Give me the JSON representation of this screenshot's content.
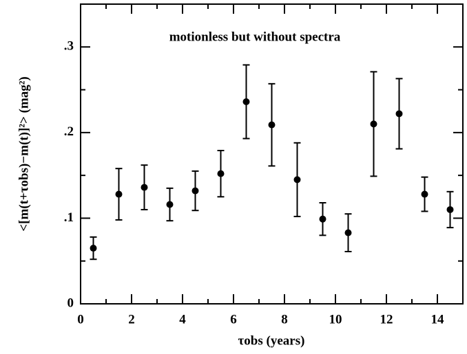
{
  "chart_data": {
    "type": "scatter",
    "annotation": "motionless but without spectra",
    "xlabel": "τobs (years)",
    "ylabel": "<[m(t+τobs)−m(t)]²> (mag²)",
    "x": [
      0.5,
      1.5,
      2.5,
      3.5,
      4.5,
      5.5,
      6.5,
      7.5,
      8.5,
      9.5,
      10.5,
      11.5,
      12.5,
      13.5,
      14.5
    ],
    "series": [
      {
        "color": "#000000",
        "values": [
          0.065,
          0.128,
          0.136,
          0.116,
          0.132,
          0.152,
          0.236,
          0.209,
          0.145,
          0.099,
          0.083,
          0.21,
          0.222,
          0.128,
          0.11
        ],
        "errors": [
          0.013,
          0.03,
          0.026,
          0.019,
          0.023,
          0.027,
          0.043,
          0.048,
          0.043,
          0.019,
          0.022,
          0.061,
          0.041,
          0.02,
          0.021
        ]
      }
    ],
    "xlim": [
      0,
      15
    ],
    "ylim": [
      0,
      0.35
    ],
    "xticks": [
      0,
      2,
      4,
      6,
      8,
      10,
      12,
      14
    ],
    "xticks_minor": [
      1,
      3,
      5,
      7,
      9,
      11,
      13
    ],
    "yticks": [
      0,
      {
        "value": 0.1,
        "label": ".1"
      },
      {
        "value": 0.2,
        "label": ".2"
      },
      {
        "value": 0.3,
        "label": ".3"
      }
    ],
    "yticks_minor": [
      0.05,
      0.15,
      0.25
    ]
  }
}
